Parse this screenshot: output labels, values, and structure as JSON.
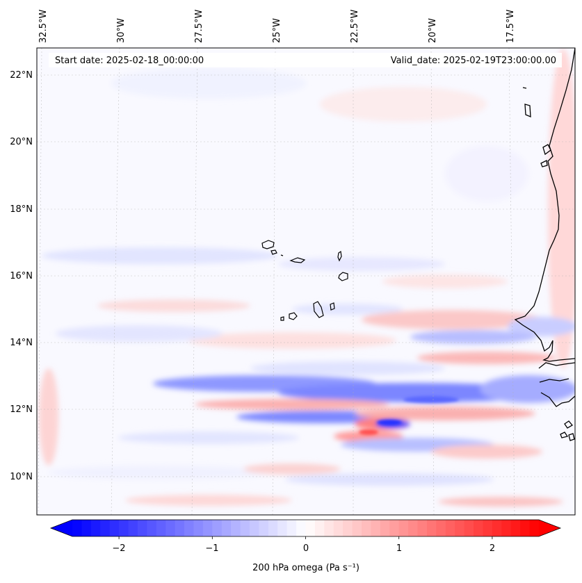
{
  "header": {
    "start_date": "Start date: 2025-02-18_00:00:00",
    "valid_date": "Valid_date: 2025-02-19T23:00:00.00"
  },
  "map": {
    "longitude_labels": [
      "32.5°W",
      "30°W",
      "27.5°W",
      "25°W",
      "22.5°W",
      "20°W",
      "17.5°W"
    ],
    "latitude_labels": [
      "22°N",
      "20°N",
      "18°N",
      "16°N",
      "14°N",
      "12°N",
      "10°N"
    ],
    "field": "200 hPa omega",
    "extent": {
      "lon_min": -33.0,
      "lon_max": -15.0,
      "lat_min": 9.0,
      "lat_max": 22.8
    }
  },
  "colorbar": {
    "label": "200 hPa omega (Pa s⁻¹)",
    "tick_labels": [
      "−2",
      "−1",
      "0",
      "1",
      "2"
    ],
    "tick_values": [
      -2,
      -1,
      0,
      1,
      2
    ],
    "vmin": -2.5,
    "vmax": 2.5,
    "low_color": "#0000ff",
    "mid_color": "#ffffff",
    "high_color": "#ff0000"
  },
  "colors": {
    "gridline": "#b0b0b0",
    "coastline": "#000000",
    "background": "#ffffff"
  }
}
